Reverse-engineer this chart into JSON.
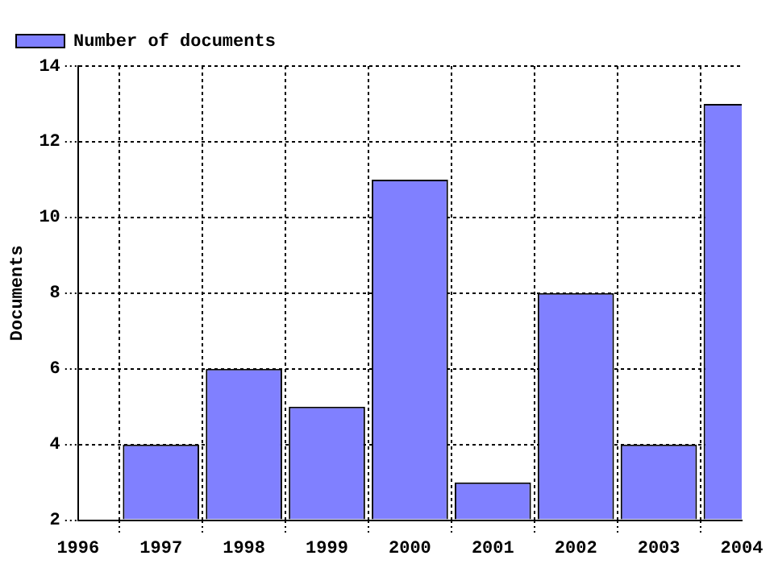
{
  "chart_data": {
    "type": "bar",
    "ylabel": "Documents",
    "x": [
      1997,
      1998,
      1999,
      2000,
      2001,
      2002,
      2003,
      2004
    ],
    "series": [
      {
        "name": "Number of documents",
        "color": "#8080ff",
        "values": [
          4,
          6,
          5,
          11,
          3,
          8,
          4,
          13
        ]
      }
    ],
    "xlim": [
      1996,
      2004
    ],
    "xticks": [
      1996,
      1997,
      1998,
      1999,
      2000,
      2001,
      2002,
      2003,
      2004
    ],
    "ylim": [
      2,
      14
    ],
    "yticks": [
      2,
      4,
      6,
      8,
      10,
      12,
      14
    ],
    "grid": true,
    "legend": "top left"
  }
}
